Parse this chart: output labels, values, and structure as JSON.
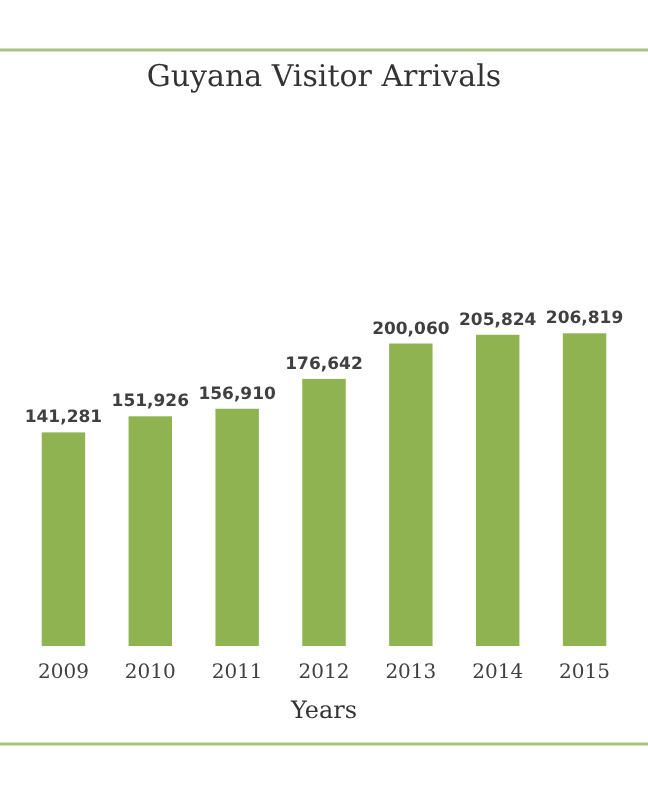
{
  "chart_data": {
    "type": "bar",
    "title": "Guyana Visitor Arrivals",
    "xlabel": "Years",
    "categories": [
      "2009",
      "2010",
      "2011",
      "2012",
      "2013",
      "2014",
      "2015"
    ],
    "values": [
      141281,
      151926,
      156910,
      176642,
      200060,
      205824,
      206819
    ],
    "value_labels": [
      "141,281",
      "151,926",
      "156,910",
      "176,642",
      "200,060",
      "205,824",
      "206,819"
    ],
    "color": "#8fb350"
  }
}
